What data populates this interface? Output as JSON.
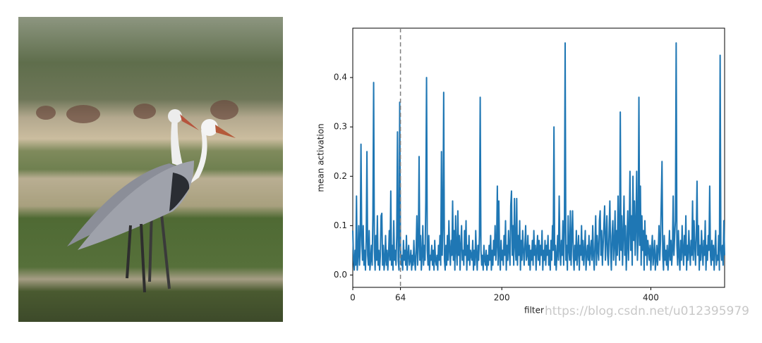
{
  "chart_data": {
    "type": "line",
    "xlabel": "filter",
    "ylabel": "mean activation",
    "watermark": "https://blog.csdn.net/u012395979",
    "color": "#1f77b4",
    "vline": 64,
    "vline_color": "#808080",
    "xlim": [
      0,
      499
    ],
    "ylim": [
      -0.025,
      0.5
    ],
    "xticks": [
      0,
      64,
      200,
      400
    ],
    "yticks": [
      {
        "value": 0,
        "label": "0.0"
      },
      0.1,
      0.2,
      0.3,
      0.4
    ],
    "x": [
      0,
      1,
      2,
      3,
      4,
      5,
      6,
      7,
      8,
      9,
      10,
      11,
      12,
      13,
      14,
      15,
      16,
      17,
      18,
      19,
      20,
      21,
      22,
      23,
      24,
      25,
      26,
      27,
      28,
      29,
      30,
      31,
      32,
      33,
      34,
      35,
      36,
      37,
      38,
      39,
      40,
      41,
      42,
      43,
      44,
      45,
      46,
      47,
      48,
      49,
      50,
      51,
      52,
      53,
      54,
      55,
      56,
      57,
      58,
      59,
      60,
      61,
      62,
      63,
      64,
      65,
      66,
      67,
      68,
      69,
      70,
      71,
      72,
      73,
      74,
      75,
      76,
      77,
      78,
      79,
      80,
      81,
      82,
      83,
      84,
      85,
      86,
      87,
      88,
      89,
      90,
      91,
      92,
      93,
      94,
      95,
      96,
      97,
      98,
      99,
      100,
      101,
      102,
      103,
      104,
      105,
      106,
      107,
      108,
      109,
      110,
      111,
      112,
      113,
      114,
      115,
      116,
      117,
      118,
      119,
      120,
      121,
      122,
      123,
      124,
      125,
      126,
      127,
      128,
      129,
      130,
      131,
      132,
      133,
      134,
      135,
      136,
      137,
      138,
      139,
      140,
      141,
      142,
      143,
      144,
      145,
      146,
      147,
      148,
      149,
      150,
      151,
      152,
      153,
      154,
      155,
      156,
      157,
      158,
      159,
      160,
      161,
      162,
      163,
      164,
      165,
      166,
      167,
      168,
      169,
      170,
      171,
      172,
      173,
      174,
      175,
      176,
      177,
      178,
      179,
      180,
      181,
      182,
      183,
      184,
      185,
      186,
      187,
      188,
      189,
      190,
      191,
      192,
      193,
      194,
      195,
      196,
      197,
      198,
      199,
      200,
      201,
      202,
      203,
      204,
      205,
      206,
      207,
      208,
      209,
      210,
      211,
      212,
      213,
      214,
      215,
      216,
      217,
      218,
      219,
      220,
      221,
      222,
      223,
      224,
      225,
      226,
      227,
      228,
      229,
      230,
      231,
      232,
      233,
      234,
      235,
      236,
      237,
      238,
      239,
      240,
      241,
      242,
      243,
      244,
      245,
      246,
      247,
      248,
      249,
      250,
      251,
      252,
      253,
      254,
      255,
      256,
      257,
      258,
      259,
      260,
      261,
      262,
      263,
      264,
      265,
      266,
      267,
      268,
      269,
      270,
      271,
      272,
      273,
      274,
      275,
      276,
      277,
      278,
      279,
      280,
      281,
      282,
      283,
      284,
      285,
      286,
      287,
      288,
      289,
      290,
      291,
      292,
      293,
      294,
      295,
      296,
      297,
      298,
      299,
      300,
      301,
      302,
      303,
      304,
      305,
      306,
      307,
      308,
      309,
      310,
      311,
      312,
      313,
      314,
      315,
      316,
      317,
      318,
      319,
      320,
      321,
      322,
      323,
      324,
      325,
      326,
      327,
      328,
      329,
      330,
      331,
      332,
      333,
      334,
      335,
      336,
      337,
      338,
      339,
      340,
      341,
      342,
      343,
      344,
      345,
      346,
      347,
      348,
      349,
      350,
      351,
      352,
      353,
      354,
      355,
      356,
      357,
      358,
      359,
      360,
      361,
      362,
      363,
      364,
      365,
      366,
      367,
      368,
      369,
      370,
      371,
      372,
      373,
      374,
      375,
      376,
      377,
      378,
      379,
      380,
      381,
      382,
      383,
      384,
      385,
      386,
      387,
      388,
      389,
      390,
      391,
      392,
      393,
      394,
      395,
      396,
      397,
      398,
      399,
      400,
      401,
      402,
      403,
      404,
      405,
      406,
      407,
      408,
      409,
      410,
      411,
      412,
      413,
      414,
      415,
      416,
      417,
      418,
      419,
      420,
      421,
      422,
      423,
      424,
      425,
      426,
      427,
      428,
      429,
      430,
      431,
      432,
      433,
      434,
      435,
      436,
      437,
      438,
      439,
      440,
      441,
      442,
      443,
      444,
      445,
      446,
      447,
      448,
      449,
      450,
      451,
      452,
      453,
      454,
      455,
      456,
      457,
      458,
      459,
      460,
      461,
      462,
      463,
      464,
      465,
      466,
      467,
      468,
      469,
      470,
      471,
      472,
      473,
      474,
      475,
      476,
      477,
      478,
      479,
      480,
      481,
      482,
      483,
      484,
      485,
      486,
      487,
      488,
      489,
      490,
      491,
      492,
      493,
      494,
      495,
      496,
      497,
      498,
      499
    ],
    "values": [
      0.09,
      0.03,
      0.01,
      0.05,
      0.02,
      0.16,
      0.01,
      0.04,
      0.1,
      0.02,
      0.06,
      0.265,
      0.08,
      0.03,
      0.1,
      0.02,
      0.05,
      0.01,
      0.07,
      0.25,
      0.04,
      0.02,
      0.09,
      0.01,
      0.03,
      0.06,
      0.02,
      0.12,
      0.39,
      0.05,
      0.01,
      0.08,
      0.03,
      0.12,
      0.02,
      0.05,
      0.01,
      0.04,
      0.12,
      0.125,
      0.02,
      0.06,
      0.01,
      0.03,
      0.08,
      0.02,
      0.05,
      0.01,
      0.04,
      0.09,
      0.03,
      0.17,
      0.02,
      0.06,
      0.01,
      0.11,
      0.03,
      0.05,
      0.02,
      0.08,
      0.29,
      0.03,
      0.01,
      0.35,
      0.06,
      0.02,
      0.04,
      0.01,
      0.07,
      0.03,
      0.05,
      0.02,
      0.08,
      0.01,
      0.04,
      0.06,
      0.02,
      0.03,
      0.05,
      0.01,
      0.04,
      0.02,
      0.07,
      0.03,
      0.01,
      0.05,
      0.12,
      0.02,
      0.06,
      0.24,
      0.03,
      0.08,
      0.01,
      0.04,
      0.1,
      0.02,
      0.06,
      0.03,
      0.15,
      0.4,
      0.05,
      0.02,
      0.08,
      0.01,
      0.04,
      0.03,
      0.06,
      0.02,
      0.05,
      0.01,
      0.07,
      0.03,
      0.02,
      0.04,
      0.01,
      0.06,
      0.03,
      0.08,
      0.02,
      0.25,
      0.04,
      0.1,
      0.37,
      0.03,
      0.01,
      0.06,
      0.02,
      0.08,
      0.03,
      0.11,
      0.05,
      0.02,
      0.07,
      0.04,
      0.15,
      0.03,
      0.09,
      0.01,
      0.12,
      0.05,
      0.02,
      0.13,
      0.04,
      0.08,
      0.01,
      0.06,
      0.1,
      0.03,
      0.05,
      0.02,
      0.09,
      0.04,
      0.11,
      0.01,
      0.06,
      0.03,
      0.08,
      0.02,
      0.05,
      0.04,
      0.03,
      0.07,
      0.01,
      0.05,
      0.02,
      0.09,
      0.04,
      0.01,
      0.06,
      0.03,
      0.08,
      0.36,
      0.05,
      0.02,
      0.04,
      0.01,
      0.06,
      0.03,
      0.02,
      0.05,
      0.01,
      0.04,
      0.02,
      0.06,
      0.03,
      0.08,
      0.01,
      0.05,
      0.02,
      0.07,
      0.04,
      0.1,
      0.03,
      0.06,
      0.18,
      0.02,
      0.15,
      0.04,
      0.01,
      0.07,
      0.03,
      0.05,
      0.02,
      0.08,
      0.04,
      0.11,
      0.01,
      0.06,
      0.03,
      0.09,
      0.05,
      0.02,
      0.14,
      0.17,
      0.04,
      0.1,
      0.02,
      0.155,
      0.06,
      0.03,
      0.155,
      0.02,
      0.08,
      0.04,
      0.11,
      0.01,
      0.07,
      0.03,
      0.09,
      0.05,
      0.02,
      0.06,
      0.1,
      0.03,
      0.04,
      0.08,
      0.02,
      0.06,
      0.01,
      0.05,
      0.03,
      0.07,
      0.02,
      0.09,
      0.04,
      0.06,
      0.01,
      0.05,
      0.08,
      0.03,
      0.07,
      0.02,
      0.06,
      0.04,
      0.09,
      0.01,
      0.05,
      0.03,
      0.07,
      0.02,
      0.06,
      0.04,
      0.08,
      0.02,
      0.05,
      0.01,
      0.07,
      0.03,
      0.1,
      0.05,
      0.3,
      0.02,
      0.06,
      0.01,
      0.04,
      0.08,
      0.03,
      0.16,
      0.05,
      0.02,
      0.07,
      0.04,
      0.11,
      0.02,
      0.09,
      0.47,
      0.03,
      0.06,
      0.01,
      0.12,
      0.05,
      0.03,
      0.13,
      0.02,
      0.08,
      0.13,
      0.04,
      0.01,
      0.06,
      0.03,
      0.09,
      0.02,
      0.05,
      0.08,
      0.01,
      0.06,
      0.04,
      0.1,
      0.03,
      0.07,
      0.02,
      0.05,
      0.09,
      0.01,
      0.04,
      0.06,
      0.03,
      0.08,
      0.02,
      0.05,
      0.07,
      0.03,
      0.1,
      0.04,
      0.01,
      0.06,
      0.12,
      0.02,
      0.08,
      0.05,
      0.03,
      0.11,
      0.13,
      0.04,
      0.09,
      0.02,
      0.06,
      0.1,
      0.14,
      0.03,
      0.07,
      0.12,
      0.04,
      0.02,
      0.09,
      0.15,
      0.05,
      0.01,
      0.08,
      0.11,
      0.03,
      0.06,
      0.13,
      0.02,
      0.09,
      0.04,
      0.16,
      0.07,
      0.03,
      0.33,
      0.05,
      0.12,
      0.02,
      0.08,
      0.16,
      0.04,
      0.1,
      0.01,
      0.06,
      0.13,
      0.03,
      0.09,
      0.21,
      0.05,
      0.12,
      0.02,
      0.2,
      0.07,
      0.15,
      0.04,
      0.1,
      0.21,
      0.03,
      0.08,
      0.36,
      0.06,
      0.18,
      0.02,
      0.12,
      0.05,
      0.09,
      0.01,
      0.11,
      0.04,
      0.08,
      0.02,
      0.07,
      0.05,
      0.03,
      0.06,
      0.01,
      0.05,
      0.08,
      0.02,
      0.04,
      0.07,
      0.01,
      0.03,
      0.06,
      0.02,
      0.05,
      0.1,
      0.03,
      0.07,
      0.15,
      0.23,
      0.04,
      0.01,
      0.08,
      0.03,
      0.05,
      0.02,
      0.06,
      0.01,
      0.04,
      0.09,
      0.03,
      0.07,
      0.02,
      0.05,
      0.16,
      0.04,
      0.08,
      0.11,
      0.47,
      0.06,
      0.02,
      0.09,
      0.04,
      0.01,
      0.07,
      0.03,
      0.1,
      0.05,
      0.02,
      0.08,
      0.04,
      0.12,
      0.01,
      0.06,
      0.03,
      0.09,
      0.05,
      0.02,
      0.07,
      0.04,
      0.15,
      0.03,
      0.11,
      0.06,
      0.02,
      0.08,
      0.19,
      0.04,
      0.1,
      0.01,
      0.06,
      0.03,
      0.09,
      0.05,
      0.02,
      0.07,
      0.04,
      0.11,
      0.01,
      0.06,
      0.03,
      0.08,
      0.05,
      0.18,
      0.04,
      0.02,
      0.07,
      0.03,
      0.06,
      0.01,
      0.05,
      0.09,
      0.02,
      0.04,
      0.03,
      0.08,
      0.01,
      0.445,
      0.05,
      0.03,
      0.06,
      0.02,
      0.11,
      0.04
    ]
  }
}
